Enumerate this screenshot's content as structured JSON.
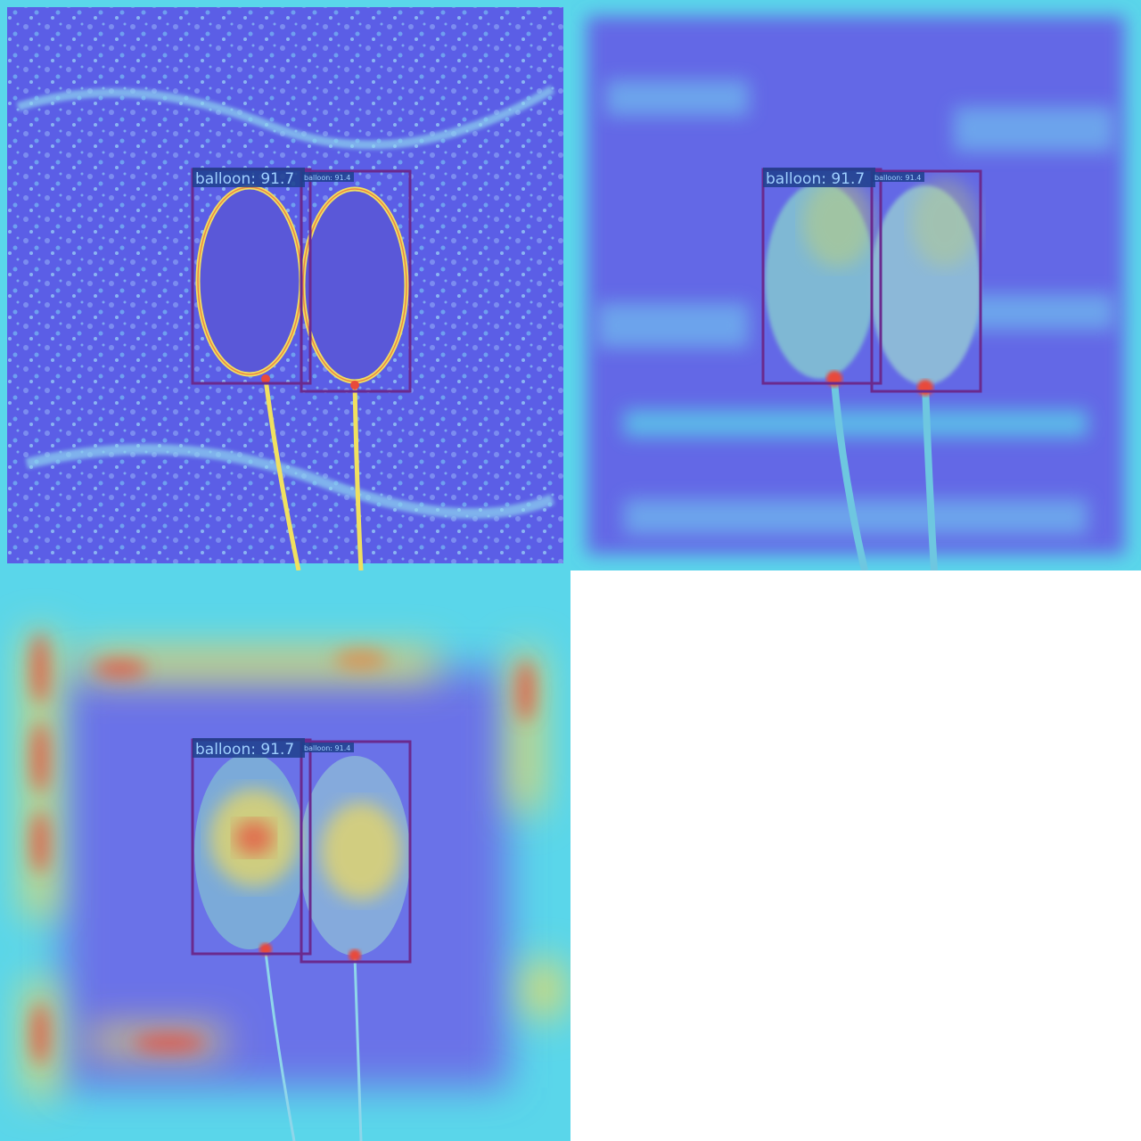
{
  "colors": {
    "low": "#5b5ee6",
    "mid": "#5ad6ea",
    "high_yellow": "#f2dc5a",
    "hot_red": "#e84a3a",
    "box": "#6a2a8e",
    "label_bg": "#1d3f8c",
    "label_text": "#9fd0ff",
    "blank": "#ffffff"
  },
  "panels": [
    {
      "id": "panel-fine",
      "detections": [
        {
          "label": "balloon: 91.7"
        },
        {
          "label": "balloon: 91.4"
        }
      ]
    },
    {
      "id": "panel-medium",
      "detections": [
        {
          "label": "balloon: 91.7"
        },
        {
          "label": "balloon: 91.4"
        }
      ]
    },
    {
      "id": "panel-coarse",
      "detections": [
        {
          "label": "balloon: 91.7"
        },
        {
          "label": "balloon: 91.4"
        }
      ]
    }
  ]
}
